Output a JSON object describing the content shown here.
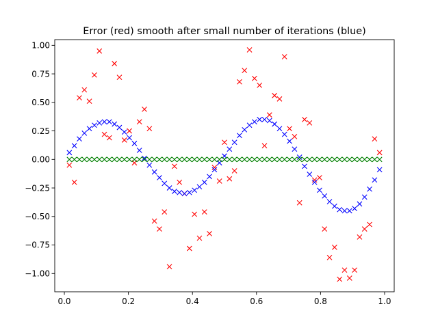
{
  "chart_data": {
    "type": "scatter",
    "title": "Error (red) smooth after small number of iterations (blue)",
    "xlabel": "",
    "ylabel": "",
    "xlim": [
      -0.03,
      1.03
    ],
    "ylim": [
      -1.16,
      1.05
    ],
    "grid": false,
    "marker": "x",
    "xticks": [
      {
        "value": 0.0,
        "label": "0.0"
      },
      {
        "value": 0.2,
        "label": "0.2"
      },
      {
        "value": 0.4,
        "label": "0.4"
      },
      {
        "value": 0.6,
        "label": "0.6"
      },
      {
        "value": 0.8,
        "label": "0.8"
      },
      {
        "value": 1.0,
        "label": "1.0"
      }
    ],
    "yticks": [
      {
        "value": 1.0,
        "label": "1.00"
      },
      {
        "value": 0.75,
        "label": "0.75"
      },
      {
        "value": 0.5,
        "label": "0.50"
      },
      {
        "value": 0.25,
        "label": "0.25"
      },
      {
        "value": 0.0,
        "label": "0.00"
      },
      {
        "value": -0.25,
        "label": "−0.25"
      },
      {
        "value": -0.5,
        "label": "−0.50"
      },
      {
        "value": -0.75,
        "label": "−0.75"
      },
      {
        "value": -1.0,
        "label": "−1.00"
      }
    ],
    "x": [
      0.0156,
      0.0313,
      0.0469,
      0.0625,
      0.0781,
      0.0938,
      0.1094,
      0.125,
      0.1406,
      0.1563,
      0.1719,
      0.1875,
      0.2031,
      0.2188,
      0.2344,
      0.25,
      0.2656,
      0.2813,
      0.2969,
      0.3125,
      0.3281,
      0.3438,
      0.3594,
      0.375,
      0.3906,
      0.4063,
      0.4219,
      0.4375,
      0.4531,
      0.4688,
      0.4844,
      0.5,
      0.5156,
      0.5313,
      0.5469,
      0.5625,
      0.5781,
      0.5938,
      0.6094,
      0.625,
      0.6406,
      0.6563,
      0.6719,
      0.6875,
      0.7031,
      0.7188,
      0.7344,
      0.75,
      0.7656,
      0.7813,
      0.7969,
      0.8125,
      0.8281,
      0.8438,
      0.8594,
      0.875,
      0.8906,
      0.9063,
      0.9219,
      0.9375,
      0.9531,
      0.9688,
      0.9844
    ],
    "series": [
      {
        "color": "#ff0000",
        "values": [
          -0.05,
          -0.2,
          0.54,
          0.61,
          0.51,
          0.74,
          0.95,
          0.22,
          0.19,
          0.84,
          0.72,
          0.17,
          0.25,
          -0.03,
          0.33,
          0.44,
          0.27,
          -0.54,
          -0.61,
          -0.46,
          -0.94,
          -0.06,
          -0.2,
          -0.3,
          -0.78,
          -0.48,
          -0.69,
          -0.46,
          -0.65,
          -0.07,
          -0.19,
          0.15,
          -0.17,
          -0.1,
          0.68,
          0.78,
          0.96,
          0.71,
          0.65,
          0.12,
          0.39,
          0.56,
          0.53,
          0.9,
          0.27,
          0.2,
          -0.38,
          0.35,
          0.32,
          -0.18,
          -0.16,
          -0.61,
          -0.86,
          -0.77,
          -1.05,
          -0.97,
          -1.04,
          -0.97,
          -0.68,
          -0.61,
          -0.57,
          0.18,
          0.06
        ]
      },
      {
        "color": "#0000ff",
        "values": [
          0.06,
          0.12,
          0.18,
          0.23,
          0.27,
          0.3,
          0.32,
          0.33,
          0.33,
          0.31,
          0.28,
          0.24,
          0.19,
          0.14,
          0.08,
          0.01,
          -0.05,
          -0.11,
          -0.16,
          -0.21,
          -0.25,
          -0.28,
          -0.29,
          -0.3,
          -0.29,
          -0.27,
          -0.24,
          -0.2,
          -0.15,
          -0.09,
          -0.03,
          0.03,
          0.09,
          0.15,
          0.21,
          0.26,
          0.3,
          0.33,
          0.35,
          0.35,
          0.34,
          0.31,
          0.27,
          0.22,
          0.16,
          0.09,
          0.02,
          -0.06,
          -0.13,
          -0.2,
          -0.27,
          -0.32,
          -0.37,
          -0.41,
          -0.44,
          -0.45,
          -0.45,
          -0.43,
          -0.39,
          -0.33,
          -0.26,
          -0.18,
          -0.09
        ]
      },
      {
        "color": "#008000",
        "values": [
          0,
          0,
          0,
          0,
          0,
          0,
          0,
          0,
          0,
          0,
          0,
          0,
          0,
          0,
          0,
          0,
          0,
          0,
          0,
          0,
          0,
          0,
          0,
          0,
          0,
          0,
          0,
          0,
          0,
          0,
          0,
          0,
          0,
          0,
          0,
          0,
          0,
          0,
          0,
          0,
          0,
          0,
          0,
          0,
          0,
          0,
          0,
          0,
          0,
          0,
          0,
          0,
          0,
          0,
          0,
          0,
          0,
          0,
          0,
          0,
          0,
          0,
          0
        ]
      }
    ]
  }
}
